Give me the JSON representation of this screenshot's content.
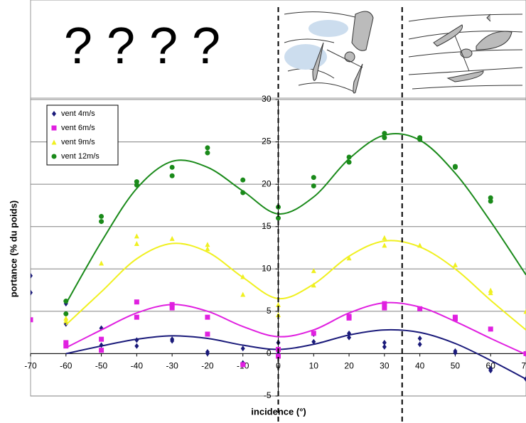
{
  "chart_data": {
    "type": "scatter",
    "annotation": "? ? ? ?",
    "xlabel": "incidence (°)",
    "ylabel": "portance (% du poids)",
    "xlim": [
      -70,
      70
    ],
    "ylim": [
      -5,
      30
    ],
    "xticks": [
      -70,
      -60,
      -50,
      -40,
      -30,
      -20,
      -10,
      0,
      10,
      20,
      30,
      40,
      50,
      60,
      70
    ],
    "yticks": [
      -5,
      0,
      5,
      10,
      15,
      20,
      25,
      30
    ],
    "grid": true,
    "legend": "upper left",
    "vlines": [
      0,
      35
    ],
    "fit_x": [
      -60,
      -50,
      -40,
      -30,
      -20,
      -10,
      0,
      10,
      20,
      30,
      40,
      50,
      60,
      70
    ],
    "series": [
      {
        "name": "vent 4m/s",
        "color": "#1a1a7a",
        "marker": "diamond",
        "x": [
          -70,
          -70,
          -60,
          -60,
          -50,
          -50,
          -40,
          -40,
          -30,
          -30,
          -20,
          -20,
          -10,
          -10,
          0,
          0,
          10,
          10,
          20,
          20,
          30,
          30,
          40,
          40,
          50,
          50,
          60,
          60,
          70
        ],
        "values": [
          9.2,
          7.2,
          3.5,
          5.9,
          3,
          1,
          1.6,
          0.9,
          1.7,
          1.5,
          0.2,
          0,
          0.6,
          -1.1,
          1.3,
          0,
          2.3,
          1.4,
          2.4,
          1.9,
          1.3,
          0.8,
          1.8,
          1.1,
          0.3,
          0.1,
          -2,
          -1.8,
          -3
        ],
        "fit": [
          0,
          0.9,
          1.7,
          2.1,
          1.8,
          1,
          0.5,
          1.1,
          2.2,
          2.8,
          2.5,
          1.2,
          -0.8,
          -3
        ]
      },
      {
        "name": "vent 6m/s",
        "color": "#e020e0",
        "marker": "square",
        "x": [
          -70,
          -60,
          -60,
          -50,
          -50,
          -40,
          -40,
          -30,
          -30,
          -20,
          -20,
          -10,
          0,
          0,
          10,
          20,
          20,
          30,
          30,
          40,
          50,
          50,
          60,
          70
        ],
        "values": [
          4,
          1.3,
          0.9,
          1.7,
          0.4,
          6.1,
          4.3,
          5.8,
          5.4,
          4.3,
          2.3,
          -1.3,
          0.5,
          -0.3,
          2.4,
          4.2,
          4.4,
          5.9,
          5.4,
          5.3,
          4.3,
          4.1,
          2.9,
          0
        ],
        "fit": [
          0.7,
          2.8,
          4.8,
          5.8,
          5,
          3.2,
          2,
          2.8,
          4.8,
          6,
          5.5,
          3.8,
          1.8,
          -0.1
        ]
      },
      {
        "name": "vent 9m/s",
        "color": "#f0f020",
        "marker": "triangle",
        "x": [
          -60,
          -60,
          -50,
          -40,
          -40,
          -30,
          -20,
          -20,
          -10,
          -10,
          0,
          0,
          10,
          10,
          20,
          30,
          30,
          40,
          50,
          60,
          60,
          70
        ],
        "values": [
          4.2,
          3.9,
          10.7,
          13.9,
          13,
          13.6,
          12.9,
          12.4,
          9.1,
          7,
          5.8,
          4.6,
          9.8,
          8.1,
          11.3,
          13.7,
          12.8,
          12.8,
          10.5,
          7.5,
          7.2,
          5
        ],
        "fit": [
          3.4,
          7.3,
          11.2,
          13,
          12,
          9,
          6.5,
          8.2,
          11.5,
          13.3,
          12.6,
          10,
          6.3,
          2.8
        ]
      },
      {
        "name": "vent 12m/s",
        "color": "#1a8a1a",
        "marker": "circle",
        "x": [
          -60,
          -60,
          -50,
          -50,
          -40,
          -40,
          -30,
          -30,
          -20,
          -20,
          -10,
          -10,
          0,
          0,
          10,
          10,
          20,
          20,
          30,
          30,
          40,
          40,
          50,
          50,
          60,
          60
        ],
        "values": [
          6.2,
          4.7,
          16.2,
          15.6,
          20.3,
          19.9,
          22,
          21,
          24.3,
          23.7,
          20.5,
          19,
          17.3,
          16,
          20.8,
          19.8,
          23.2,
          22.6,
          26,
          25.5,
          25.5,
          25.3,
          22.1,
          22,
          18.4,
          18
        ],
        "fit": [
          5.9,
          13.2,
          19.5,
          22.7,
          22,
          19.2,
          16.5,
          18.5,
          23,
          25.8,
          25.2,
          21.3,
          15.6,
          9.3
        ]
      }
    ]
  }
}
